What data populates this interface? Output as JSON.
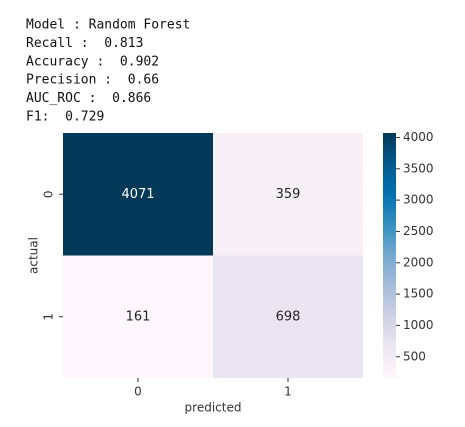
{
  "output_lines": [
    "Model : Random Forest",
    "Recall :  0.813",
    "Accuracy :  0.902",
    "Precision :  0.66",
    "AUC_ROC :  0.866",
    "F1:  0.729"
  ],
  "chart_data": {
    "type": "heatmap",
    "x_categories": [
      "0",
      "1"
    ],
    "y_categories": [
      "0",
      "1"
    ],
    "values": [
      [
        4071,
        359
      ],
      [
        161,
        698
      ]
    ],
    "xlabel": "predicted",
    "ylabel": "actual",
    "zlim": [
      161,
      4071
    ],
    "zticks": [
      500,
      1000,
      1500,
      2000,
      2500,
      3000,
      3500,
      4000
    ],
    "colormap": [
      "#fff7fb",
      "#ece7f2",
      "#d0d1e6",
      "#a6bddb",
      "#74a9cf",
      "#3690c0",
      "#0570b0",
      "#045a8d",
      "#023858"
    ]
  }
}
